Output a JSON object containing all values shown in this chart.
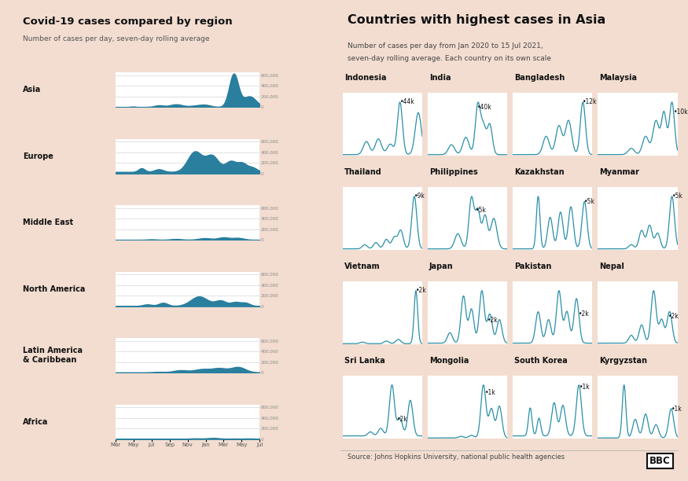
{
  "background_color": "#f2ddd0",
  "panel_bg": "#ffffff",
  "left_title": "Covid-19 cases compared by region",
  "left_subtitle": "Number of cases per day, seven-day rolling average",
  "right_title": "Countries with highest cases in Asia",
  "right_subtitle1": "Number of cases per day from Jan 2020 to 15 Jul 2021,",
  "right_subtitle2": "seven-day rolling average. Each country on its own scale",
  "source_text": "Source: Johns Hopkins University, national public health agencies",
  "fill_color": "#2a7f9e",
  "line_color": "#2a8fa8",
  "regions": [
    "Asia",
    "Europe",
    "Middle East",
    "North America",
    "Latin America\n& Caribbean",
    "Africa"
  ],
  "x_tick_labels": [
    "Mar",
    "May",
    "Jul",
    "Sep",
    "Nov",
    "Jan",
    "Mar",
    "May",
    "Jul"
  ],
  "countries": [
    [
      "Indonesia",
      "India",
      "Bangladesh",
      "Malaysia"
    ],
    [
      "Thailand",
      "Philippines",
      "Kazakhstan",
      "Myanmar"
    ],
    [
      "Vietnam",
      "Japan",
      "Pakistan",
      "Nepal"
    ],
    [
      "Sri Lanka",
      "Mongolia",
      "South Korea",
      "Kyrgyzstan"
    ]
  ],
  "country_peaks": [
    [
      "44k",
      "40k",
      "12k",
      "10k"
    ],
    [
      "9k",
      "5k",
      "5k",
      "5k"
    ],
    [
      "2k",
      "2k",
      "2k",
      "2k"
    ],
    [
      "2k",
      "1k",
      "1k",
      "1k"
    ]
  ],
  "peak_positions": [
    [
      [
        0.72,
        1.0
      ],
      [
        0.62,
        0.62
      ],
      [
        0.88,
        1.0
      ],
      [
        0.95,
        1.0
      ]
    ],
    [
      [
        0.9,
        1.0
      ],
      [
        0.6,
        0.85
      ],
      [
        0.9,
        1.0
      ],
      [
        0.93,
        1.0
      ]
    ],
    [
      [
        0.92,
        1.0
      ],
      [
        0.75,
        0.55
      ],
      [
        0.83,
        0.55
      ],
      [
        0.88,
        0.55
      ]
    ],
    [
      [
        0.68,
        0.85
      ],
      [
        0.72,
        0.85
      ],
      [
        0.84,
        1.0
      ],
      [
        0.92,
        0.55
      ]
    ]
  ]
}
